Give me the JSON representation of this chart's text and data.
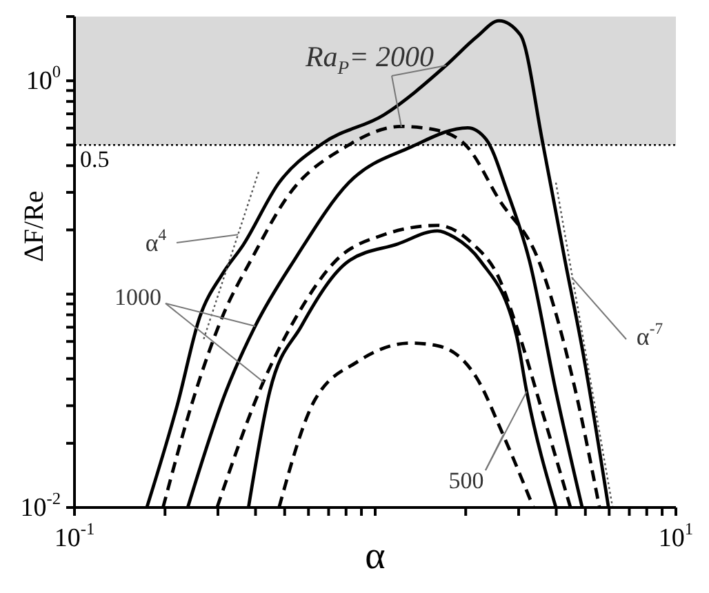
{
  "chart_data": {
    "type": "line",
    "xlabel": "α",
    "ylabel": "ΔF/Re",
    "log": "xy",
    "grid": false,
    "marker": "none",
    "xlim": [
      0.1,
      10
    ],
    "ylim": [
      0.01,
      2
    ],
    "xticks": [
      {
        "value": 0.1,
        "label": "10$^{-1}$"
      },
      {
        "value": 0.2,
        "label": null
      },
      {
        "value": 0.3,
        "label": null
      },
      {
        "value": 0.4,
        "label": null
      },
      {
        "value": 0.5,
        "label": null
      },
      {
        "value": 0.6,
        "label": null
      },
      {
        "value": 0.7,
        "label": null
      },
      {
        "value": 0.8,
        "label": null
      },
      {
        "value": 0.9,
        "label": null
      },
      {
        "value": 1,
        "label": null
      },
      {
        "value": 2,
        "label": null
      },
      {
        "value": 3,
        "label": null
      },
      {
        "value": 4,
        "label": null
      },
      {
        "value": 5,
        "label": null
      },
      {
        "value": 6,
        "label": null
      },
      {
        "value": 7,
        "label": null
      },
      {
        "value": 8,
        "label": null
      },
      {
        "value": 9,
        "label": null
      },
      {
        "value": 10,
        "label": "10$^{1}$"
      }
    ],
    "yticks": [
      {
        "value": 0.01,
        "label": "10$^{-2}$"
      },
      {
        "value": 0.02,
        "label": null
      },
      {
        "value": 0.03,
        "label": null
      },
      {
        "value": 0.04,
        "label": null
      },
      {
        "value": 0.05,
        "label": null
      },
      {
        "value": 0.06,
        "label": null
      },
      {
        "value": 0.07,
        "label": null
      },
      {
        "value": 0.08,
        "label": null
      },
      {
        "value": 0.09,
        "label": null
      },
      {
        "value": 0.1,
        "label": null
      },
      {
        "value": 0.2,
        "label": null
      },
      {
        "value": 0.3,
        "label": null
      },
      {
        "value": 0.4,
        "label": null
      },
      {
        "value": 0.5,
        "label": null
      },
      {
        "value": 0.6,
        "label": null
      },
      {
        "value": 0.7,
        "label": null
      },
      {
        "value": 0.8,
        "label": null
      },
      {
        "value": 0.9,
        "label": null
      },
      {
        "value": 1,
        "label": "10$^{0}$"
      },
      {
        "value": 2,
        "label": null
      }
    ],
    "series": [
      {
        "color": "#000000",
        "line_style": "solid",
        "x": [
          0.174,
          0.22,
          0.261,
          0.31,
          0.364,
          0.479,
          0.668,
          1.07,
          1.72,
          2.18,
          2.58,
          3.04,
          3.61,
          4.28,
          4.88,
          5.97
        ],
        "values": [
          0.01,
          0.0304,
          0.0781,
          0.124,
          0.17,
          0.333,
          0.508,
          0.693,
          1.18,
          1.61,
          1.91,
          1.64,
          0.508,
          0.143,
          0.0557,
          0.01
        ]
      },
      {
        "color": "#000000",
        "line_style": "dashed",
        "x": [
          0.197,
          0.253,
          0.31,
          0.391,
          0.514,
          0.793,
          1.22,
          1.61,
          2.03,
          2.58,
          3.5,
          4.64,
          5.57
        ],
        "values": [
          0.01,
          0.035,
          0.0781,
          0.149,
          0.29,
          0.488,
          0.611,
          0.586,
          0.488,
          0.278,
          0.143,
          0.035,
          0.01
        ]
      },
      {
        "color": "#000000",
        "line_style": "solid",
        "x": [
          0.238,
          0.319,
          0.399,
          0.546,
          0.817,
          1.31,
          2.03,
          2.34,
          2.75,
          3.26,
          3.99,
          4.88
        ],
        "values": [
          0.01,
          0.035,
          0.0708,
          0.149,
          0.333,
          0.488,
          0.602,
          0.531,
          0.302,
          0.143,
          0.035,
          0.01
        ]
      },
      {
        "color": "#000000",
        "line_style": "dashed",
        "x": [
          0.298,
          0.424,
          0.546,
          0.738,
          1.07,
          1.61,
          2.11,
          2.58,
          2.95,
          3.61,
          4.46
        ],
        "values": [
          0.01,
          0.0386,
          0.0781,
          0.143,
          0.19,
          0.21,
          0.172,
          0.119,
          0.0708,
          0.0276,
          0.01
        ]
      },
      {
        "color": "#000000",
        "line_style": "solid",
        "x": [
          0.379,
          0.446,
          0.568,
          0.817,
          1.19,
          1.61,
          1.83,
          2.24,
          2.95,
          3.19,
          3.99
        ],
        "values": [
          0.01,
          0.035,
          0.0708,
          0.143,
          0.172,
          0.198,
          0.185,
          0.143,
          0.0641,
          0.035,
          0.01
        ]
      },
      {
        "color": "#000000",
        "line_style": "dashed",
        "x": [
          0.479,
          0.629,
          0.877,
          1.31,
          1.61,
          2.18,
          2.66,
          3.36
        ],
        "values": [
          0.01,
          0.0318,
          0.0484,
          0.059,
          0.0573,
          0.0403,
          0.022,
          0.01
        ]
      },
      {
        "color": "#555555",
        "line_style": "dotted",
        "x": [
          0.269,
          0.412
        ],
        "values": [
          0.0616,
          0.384
        ]
      },
      {
        "color": "#555555",
        "line_style": "dotted",
        "x": [
          3.99,
          6.16
        ],
        "values": [
          0.333,
          0.01
        ]
      }
    ],
    "ref_lines": [
      {
        "axis": "y",
        "value": 0.5,
        "label": "0.5",
        "line_style": "dotted",
        "color": "#000000"
      }
    ],
    "bands": [
      {
        "axis": "y",
        "from": 0.5,
        "to": 2,
        "color": "#d9d9d9"
      }
    ],
    "annotations": [
      {
        "text": "Ra$_{P}$= 2000",
        "x": 1.72,
        "y": 1.18
      },
      {
        "text": "1000",
        "x": 0.399,
        "y": 0.0708
      },
      {
        "text": "500",
        "x": 3.19,
        "y": 0.035
      },
      {
        "text": "α$^{4}$",
        "x": 0.35,
        "y": 0.19
      },
      {
        "text": "α$^{-7}$",
        "x": 4.5,
        "y": 0.12
      }
    ]
  }
}
